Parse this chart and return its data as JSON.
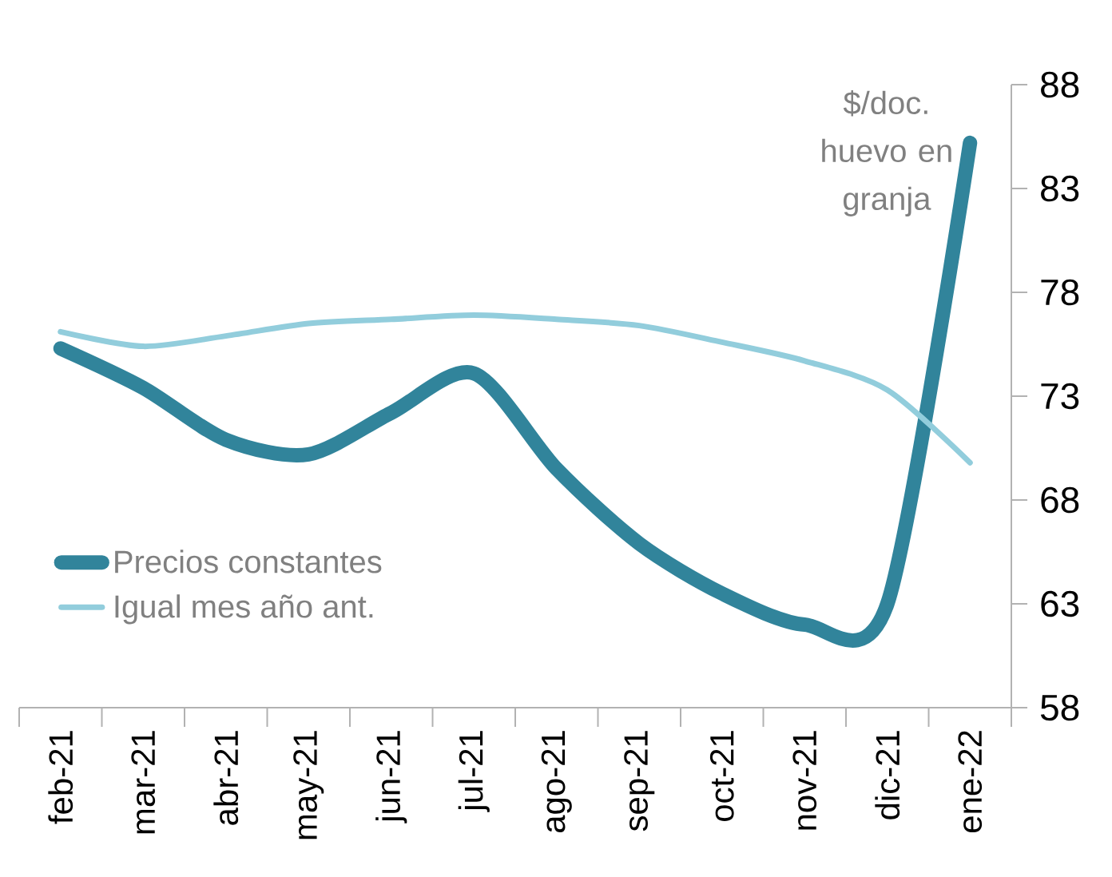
{
  "chart_data": {
    "type": "line",
    "ylabel": "$/doc. huevo en granja",
    "categories": [
      "feb-21",
      "mar-21",
      "abr-21",
      "may-21",
      "jun-21",
      "jul-21",
      "ago-21",
      "sep-21",
      "oct-21",
      "nov-21",
      "dic-21",
      "ene-22"
    ],
    "series": [
      {
        "name": "Precios constantes",
        "color": "#31849b",
        "values": [
          75.3,
          73.4,
          70.9,
          70.2,
          72.2,
          74.1,
          69.5,
          65.9,
          63.5,
          62.0,
          63.0,
          85.2
        ]
      },
      {
        "name": "Igual mes año ant.",
        "color": "#92cddc",
        "values": [
          76.1,
          75.4,
          75.9,
          76.5,
          76.7,
          76.9,
          76.7,
          76.4,
          75.6,
          74.7,
          73.3,
          69.8
        ]
      }
    ],
    "ylim": [
      58,
      88
    ],
    "yticks": [
      58,
      63,
      68,
      73,
      78,
      83,
      88
    ],
    "grid": false,
    "legend": "bottom left"
  }
}
